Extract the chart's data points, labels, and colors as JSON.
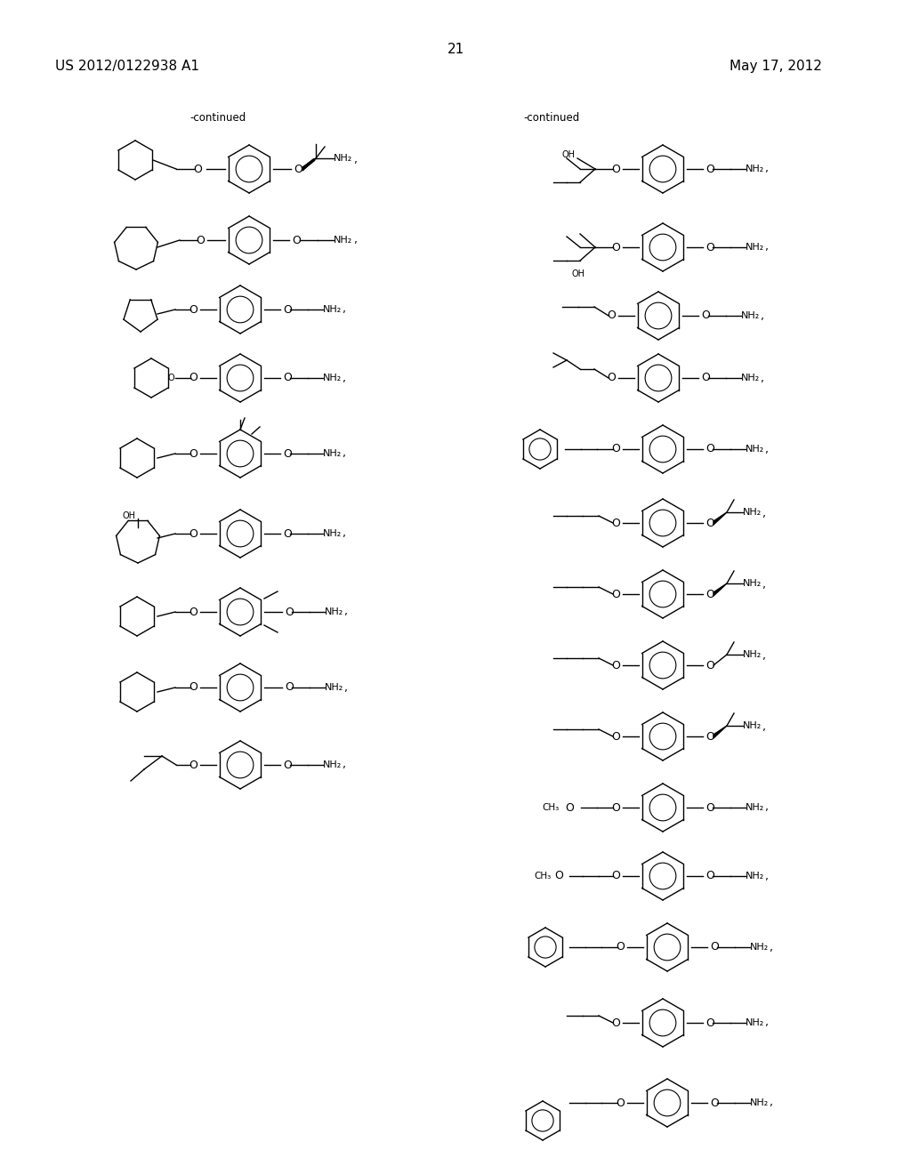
{
  "title_left": "US 2012/0122938 A1",
  "title_right": "May 17, 2012",
  "page_number": "21",
  "continued_left": "-continued",
  "continued_right": "-continued",
  "background_color": "#ffffff",
  "text_color": "#000000",
  "font_size_header": 11,
  "font_size_label": 9,
  "font_size_nh2": 8
}
